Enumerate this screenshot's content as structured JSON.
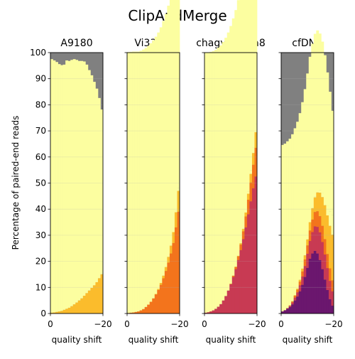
{
  "figure": {
    "title": "ClipAndMerge",
    "ylabel": "Percentage of paired-end reads",
    "colors": {
      "unaffected": "#fcfea0",
      "mild": "#fbbc2c",
      "moderate": "#f3741c",
      "strong": "#c83a53",
      "heavy": "#6b176e",
      "severe": "#230c4b",
      "lost": "#808080"
    }
  },
  "chart_data": [
    {
      "type": "area",
      "title": "A9180",
      "xlabel": "quality shift",
      "ylabel": "Percentage of paired-end reads",
      "xlim": [
        0,
        -20
      ],
      "ylim": [
        0,
        100
      ],
      "xticks": [
        "0",
        "−20"
      ],
      "yticks": [
        "0",
        "10",
        "20",
        "30",
        "40",
        "50",
        "60",
        "70",
        "80",
        "90",
        "100"
      ],
      "grid": true,
      "x": [
        0,
        -1,
        -2,
        -3,
        -4,
        -5,
        -6,
        -7,
        -8,
        -9,
        -10,
        -11,
        -12,
        -13,
        -14,
        -15,
        -16,
        -17,
        -18,
        -19,
        -20
      ],
      "series": [
        {
          "values": [
            0.3,
            0.4,
            0.6,
            0.8,
            1.0,
            1.4,
            1.8,
            2.2,
            2.8,
            3.5,
            4.2,
            5.0,
            5.8,
            6.8,
            7.8,
            8.8,
            9.8,
            10.8,
            12.0,
            13.5,
            15.0
          ]
        },
        {
          "values": [
            0,
            0,
            0,
            0,
            0,
            0,
            0,
            0,
            0,
            0,
            0,
            0,
            0,
            0,
            0,
            0,
            0,
            0,
            0,
            0.1,
            0.2
          ]
        },
        {
          "values": [
            97.2,
            96.6,
            95.8,
            94.8,
            94.2,
            94.0,
            95.2,
            94.6,
            94.4,
            94.0,
            93.0,
            91.8,
            91.0,
            89.8,
            87.6,
            84.5,
            81.5,
            78.0,
            74.2,
            69.0,
            63.0
          ]
        }
      ]
    },
    {
      "type": "area",
      "title": "Vi33.19",
      "xlabel": "quality shift",
      "ylabel": "",
      "xlim": [
        0,
        -20
      ],
      "ylim": [
        0,
        100
      ],
      "xticks": [
        "0",
        "−20"
      ],
      "yticks": [],
      "grid": true,
      "x": [
        0,
        -1,
        -2,
        -3,
        -4,
        -5,
        -6,
        -7,
        -8,
        -9,
        -10,
        -11,
        -12,
        -13,
        -14,
        -15,
        -16,
        -17,
        -18,
        -19,
        -20
      ],
      "series": [
        {
          "values": [
            0.2,
            0.3,
            0.4,
            0.6,
            0.8,
            1.2,
            1.7,
            2.5,
            3.4,
            4.5,
            5.8,
            7.3,
            9.0,
            11.0,
            13.5,
            16.3,
            19.5,
            23.0,
            27.0,
            33.0,
            39.0
          ]
        },
        {
          "values": [
            0,
            0,
            0,
            0,
            0,
            0,
            0,
            0,
            0,
            0,
            0,
            0.2,
            0.4,
            0.7,
            1.0,
            1.5,
            2.2,
            3.0,
            4.2,
            5.8,
            8.0
          ]
        },
        {
          "values": [
            0,
            0,
            0,
            0,
            0,
            0,
            0,
            0,
            0,
            0,
            0,
            0,
            0,
            0,
            0,
            0,
            0,
            0,
            0,
            0.6,
            1.2
          ]
        },
        {
          "values": [
            100,
            100,
            100,
            99.8,
            99.6,
            99.5,
            99.5,
            99.3,
            99.2,
            99.1,
            98.9,
            98.6,
            98.3,
            98.0,
            97.6,
            97.0,
            96.3,
            95.2,
            93.4,
            88.0,
            73.5
          ]
        }
      ]
    },
    {
      "type": "area",
      "title": "chagyrskaya8",
      "xlabel": "quality shift",
      "ylabel": "",
      "xlim": [
        0,
        -20
      ],
      "ylim": [
        0,
        100
      ],
      "xticks": [
        "0",
        "−20"
      ],
      "yticks": [],
      "grid": true,
      "x": [
        0,
        -1,
        -2,
        -3,
        -4,
        -5,
        -6,
        -7,
        -8,
        -9,
        -10,
        -11,
        -12,
        -13,
        -14,
        -15,
        -16,
        -17,
        -18,
        -19,
        -20
      ],
      "series": [
        {
          "values": [
            0.3,
            0.5,
            0.8,
            1.2,
            1.8,
            2.6,
            3.6,
            5.0,
            6.7,
            8.8,
            11.2,
            14.0,
            17.0,
            20.5,
            24.3,
            28.5,
            33.0,
            38.0,
            43.0,
            48.0,
            52.5
          ]
        },
        {
          "values": [
            0,
            0,
            0,
            0,
            0,
            0,
            0,
            0,
            0,
            0,
            0.2,
            0.5,
            0.9,
            1.4,
            2.1,
            3.0,
            4.2,
            5.6,
            7.2,
            9.0,
            11.0
          ]
        },
        {
          "values": [
            0,
            0,
            0,
            0,
            0,
            0,
            0,
            0,
            0,
            0,
            0,
            0,
            0,
            0.2,
            0.5,
            0.9,
            1.5,
            2.3,
            3.3,
            4.5,
            6.0
          ]
        },
        {
          "values": [
            0,
            0,
            0,
            0,
            0,
            0,
            0,
            0,
            0,
            0,
            0,
            0,
            0,
            0,
            0,
            0.2,
            0.4,
            0.8,
            1.3,
            2.0,
            3.0
          ]
        },
        {
          "values": [
            99.7,
            99.6,
            99.5,
            99.4,
            99.3,
            99.3,
            99.2,
            99.1,
            99.0,
            98.9,
            98.8,
            98.6,
            98.4,
            98.0,
            97.6,
            96.5,
            95.4,
            94.0,
            91.8,
            88.0,
            76.0
          ]
        }
      ]
    },
    {
      "type": "area",
      "title": "cfDNA",
      "xlabel": "quality shift",
      "ylabel": "",
      "xlim": [
        0,
        -20
      ],
      "ylim": [
        0,
        100
      ],
      "xticks": [
        "0",
        "−20"
      ],
      "yticks": [],
      "grid": true,
      "x": [
        0,
        -1,
        -2,
        -3,
        -4,
        -5,
        -6,
        -7,
        -8,
        -9,
        -10,
        -11,
        -12,
        -13,
        -14,
        -15,
        -16,
        -17,
        -18,
        -19,
        -20
      ],
      "series": [
        {
          "values": [
            0.8,
            1.2,
            1.8,
            2.5,
            3.5,
            5.0,
            6.5,
            8.5,
            11.0,
            14.0,
            17.5,
            21.0,
            23.0,
            24.0,
            23.0,
            20.5,
            17.0,
            13.0,
            9.0,
            5.5,
            3.0
          ]
        },
        {
          "values": [
            0,
            0.1,
            0.2,
            0.4,
            0.7,
            1.1,
            1.6,
            2.3,
            3.2,
            4.2,
            5.4,
            6.8,
            8.2,
            9.4,
            10.2,
            10.6,
            10.4,
            9.6,
            8.4,
            7.0,
            5.5
          ]
        },
        {
          "values": [
            0,
            0,
            0.1,
            0.2,
            0.4,
            0.7,
            1.0,
            1.4,
            1.9,
            2.5,
            3.2,
            4.0,
            4.8,
            5.5,
            6.0,
            6.2,
            6.2,
            5.9,
            5.4,
            4.8,
            4.2
          ]
        },
        {
          "values": [
            0,
            0,
            0,
            0,
            0.1,
            0.2,
            0.4,
            0.7,
            1.1,
            1.6,
            2.3,
            3.2,
            4.3,
            5.6,
            7.2,
            9.0,
            11.0,
            13.0,
            14.8,
            16.3,
            17.5
          ]
        },
        {
          "values": [
            0,
            0,
            0,
            0,
            0,
            0,
            0,
            0,
            0,
            0,
            0,
            0,
            0.1,
            0.3,
            0.6,
            1.0,
            1.6,
            2.5,
            3.8,
            5.4,
            7.5
          ]
        },
        {
          "values": [
            63.8,
            63.8,
            63.9,
            63.9,
            64.0,
            64.0,
            64.0,
            63.9,
            63.8,
            63.7,
            63.6,
            63.4,
            63.0,
            62.4,
            61.5,
            60.0,
            58.0,
            55.0,
            51.0,
            46.0,
            40.0
          ]
        }
      ]
    }
  ]
}
